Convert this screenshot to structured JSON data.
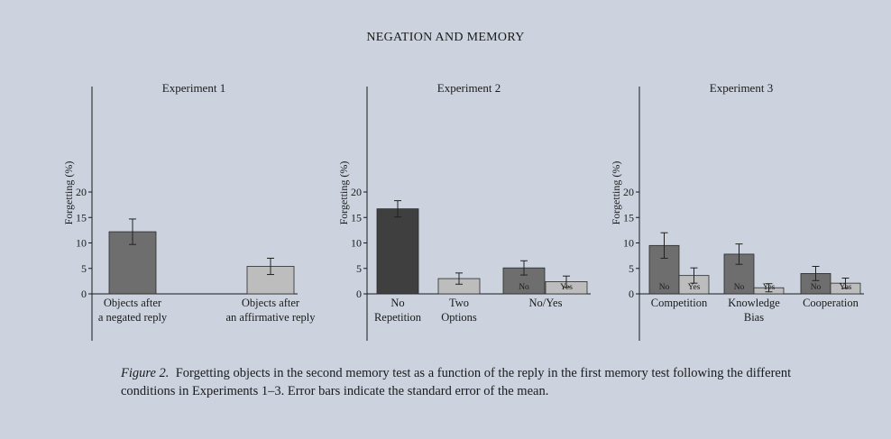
{
  "header": {
    "title": "NEGATION AND MEMORY"
  },
  "caption": {
    "label": "Figure 2.",
    "text": "Forgetting objects in the second memory test as a function of the reply in the first memory test following the different conditions in Experiments 1–3. Error bars indicate the standard error of the mean."
  },
  "colors": {
    "dark": "#3f3f3f",
    "medium": "#6e6e6e",
    "light": "#bdbdbd",
    "axis": "#1a1a1a"
  },
  "chart_data": [
    {
      "type": "bar",
      "title": "Experiment 1",
      "ylabel": "Forgetting (%)",
      "ylim": [
        0,
        20
      ],
      "yticks": [
        0,
        5,
        10,
        15,
        20
      ],
      "bars": [
        {
          "value": 12.2,
          "err": 2.5,
          "color": "medium",
          "inner_label": ""
        },
        {
          "value": 5.4,
          "err": 1.6,
          "color": "light",
          "inner_label": ""
        }
      ],
      "groups": [
        {
          "label_lines": [
            "Objects after",
            "a negated reply"
          ]
        },
        {
          "label_lines": [
            "Objects after",
            "an affirmative reply"
          ]
        }
      ]
    },
    {
      "type": "bar",
      "title": "Experiment 2",
      "ylabel": "Forgetting (%)",
      "ylim": [
        0,
        20
      ],
      "yticks": [
        0,
        5,
        10,
        15,
        20
      ],
      "bars": [
        {
          "value": 16.7,
          "err": 1.6,
          "color": "dark",
          "inner_label": ""
        },
        {
          "value": 3.0,
          "err": 1.1,
          "color": "light",
          "inner_label": ""
        },
        {
          "value": 5.1,
          "err": 1.4,
          "color": "medium",
          "inner_label": "No"
        },
        {
          "value": 2.4,
          "err": 1.1,
          "color": "light",
          "inner_label": "Yes"
        }
      ],
      "groups": [
        {
          "label_lines": [
            "No",
            "Repetition"
          ]
        },
        {
          "label_lines": [
            "Two",
            "Options"
          ]
        },
        {
          "label_lines": [
            "No/Yes"
          ]
        }
      ]
    },
    {
      "type": "bar",
      "title": "Experiment 3",
      "ylabel": "Forgetting (%)",
      "ylim": [
        0,
        20
      ],
      "yticks": [
        0,
        5,
        10,
        15,
        20
      ],
      "bars": [
        {
          "value": 9.5,
          "err": 2.5,
          "color": "medium",
          "inner_label": "No"
        },
        {
          "value": 3.6,
          "err": 1.5,
          "color": "light",
          "inner_label": "Yes"
        },
        {
          "value": 7.8,
          "err": 2.0,
          "color": "medium",
          "inner_label": "No"
        },
        {
          "value": 1.2,
          "err": 0.8,
          "color": "light",
          "inner_label": "Yes"
        },
        {
          "value": 4.0,
          "err": 1.4,
          "color": "medium",
          "inner_label": "No"
        },
        {
          "value": 2.1,
          "err": 1.0,
          "color": "light",
          "inner_label": "Yes"
        }
      ],
      "groups": [
        {
          "label_lines": [
            "Competition"
          ]
        },
        {
          "label_lines": [
            "Knowledge",
            "Bias"
          ]
        },
        {
          "label_lines": [
            "Cooperation"
          ]
        }
      ]
    }
  ]
}
